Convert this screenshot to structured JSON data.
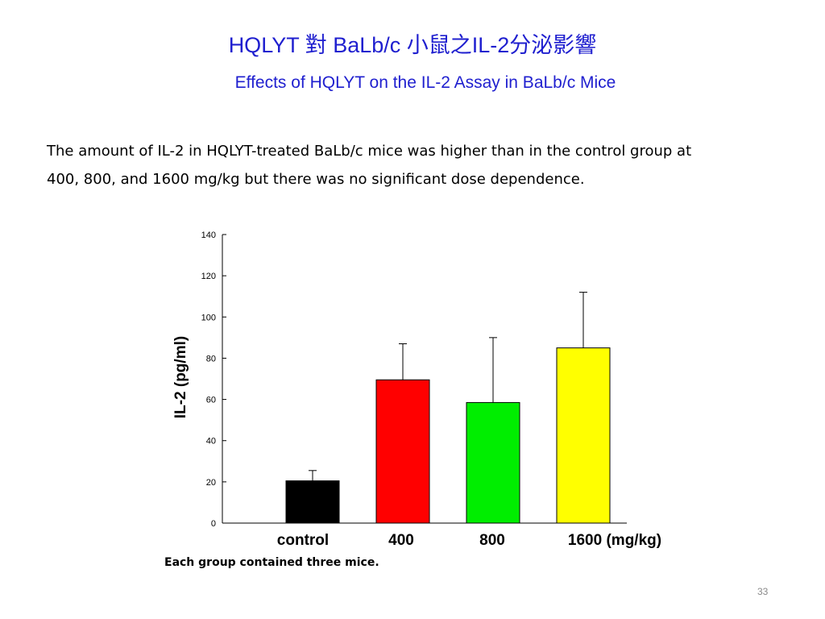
{
  "slide": {
    "title_zh": "HQLYT 對 BaLb/c 小鼠之IL-2分泌影響",
    "title_en": "Effects of HQLYT on the IL-2 Assay in BaLb/c Mice",
    "body_lines": [
      "The amount of IL-2 in HQLYT-treated BaLb/c mice was higher than in the control group at",
      "400, 800, and 1600 mg/kg but there was no significant dose dependence."
    ],
    "footnote": "Each group contained three mice.",
    "page_number": "33"
  },
  "chart_data": {
    "type": "bar",
    "categories": [
      "control",
      "400",
      "800",
      "1600 (mg/kg)"
    ],
    "values": [
      20.5,
      69.5,
      58.5,
      85
    ],
    "error_upper": [
      25.5,
      87,
      90,
      112
    ],
    "colors": [
      "#000000",
      "#ff0000",
      "#00ee00",
      "#ffff00"
    ],
    "ylabel": "IL-2 (pg/ml)",
    "ylim": [
      0,
      140
    ],
    "yticks": [
      "0",
      "20",
      "40",
      "60",
      "80",
      "100",
      "120",
      "140"
    ],
    "grid": false,
    "legend": "none"
  }
}
